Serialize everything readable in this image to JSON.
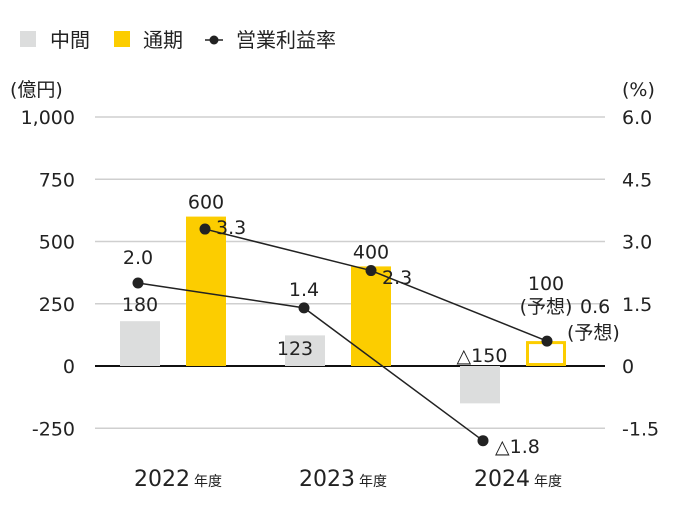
{
  "chart_data": {
    "type": "bar",
    "legend": {
      "position": "top-left",
      "items": [
        "中間",
        "通期",
        "営業利益率"
      ]
    },
    "left_axis": {
      "unit": "(億円)",
      "ylim": [
        -250,
        1000
      ],
      "ticks": [
        "1,000",
        "750",
        "500",
        "250",
        "0",
        "-250"
      ],
      "tick_values": [
        1000,
        750,
        500,
        250,
        0,
        -250
      ]
    },
    "right_axis": {
      "unit": "(%)",
      "ylim": [
        -1.5,
        6.0
      ],
      "ticks": [
        "6.0",
        "4.5",
        "3.0",
        "1.5",
        "0",
        "-1.5"
      ],
      "tick_values": [
        6.0,
        4.5,
        3.0,
        1.5,
        0,
        -1.5
      ]
    },
    "categories": [
      "2022",
      "2023",
      "2024"
    ],
    "category_suffix": "年度",
    "series": [
      {
        "name": "中間",
        "kind": "bar",
        "color": "#dcdddd",
        "values": [
          180,
          123,
          -150
        ],
        "labels": [
          "180",
          "123",
          "△150"
        ]
      },
      {
        "name": "通期",
        "kind": "bar",
        "color": "#fccd00",
        "values": [
          600,
          400,
          100
        ],
        "labels": [
          "600",
          "400",
          "100"
        ],
        "forecast": [
          false,
          false,
          true
        ]
      },
      {
        "name": "営業利益率(中間)",
        "kind": "line",
        "axis": "right",
        "color": "#222222",
        "values": [
          2.0,
          1.4,
          -1.8
        ],
        "labels": [
          "2.0",
          "1.4",
          "△1.8"
        ]
      },
      {
        "name": "営業利益率(通期)",
        "kind": "line",
        "axis": "right",
        "color": "#222222",
        "values": [
          3.3,
          2.3,
          0.6
        ],
        "labels": [
          "3.3",
          "2.3",
          "0.6"
        ]
      }
    ],
    "forecast_note": "(予想)"
  }
}
